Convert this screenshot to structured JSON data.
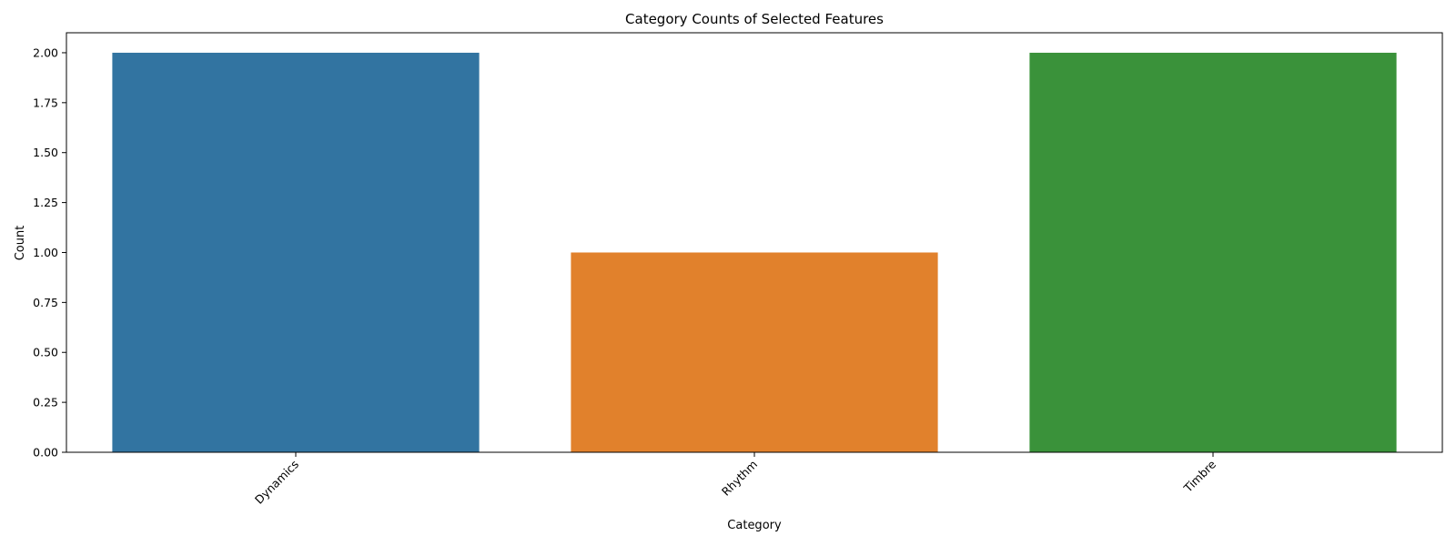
{
  "chart_data": {
    "type": "bar",
    "title": "Category Counts of Selected Features",
    "xlabel": "Category",
    "ylabel": "Count",
    "categories": [
      "Dynamics",
      "Rhythm",
      "Timbre"
    ],
    "values": [
      2,
      1,
      2
    ],
    "colors": [
      "#3274a1",
      "#e1812c",
      "#3a923a"
    ],
    "ylim": [
      0,
      2.1
    ],
    "yticks": [
      0,
      0.25,
      0.5,
      0.75,
      1.0,
      1.25,
      1.5,
      1.75,
      2.0
    ],
    "ytick_labels": [
      "0.00",
      "0.25",
      "0.50",
      "0.75",
      "1.00",
      "1.25",
      "1.50",
      "1.75",
      "2.00"
    ],
    "grid": false,
    "legend": "none",
    "xtick_rotation_deg": 45
  }
}
